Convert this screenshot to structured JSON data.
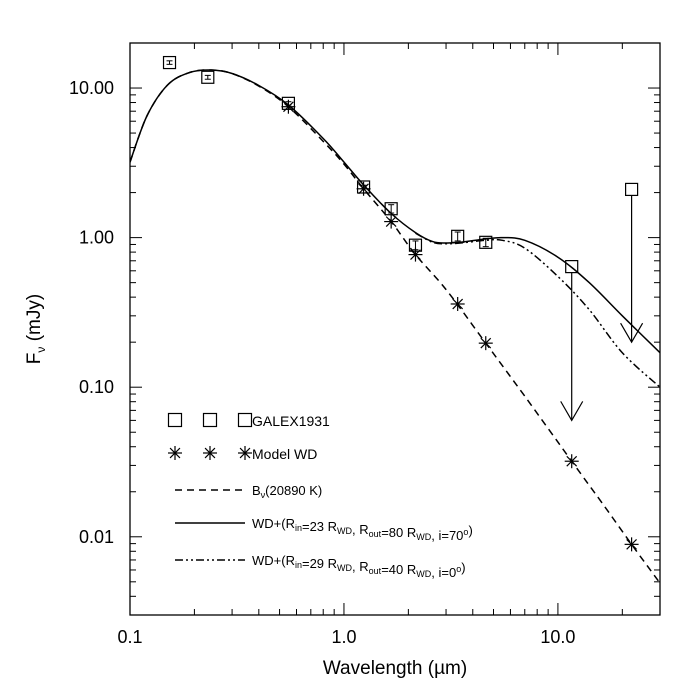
{
  "chart_data": {
    "type": "scatter",
    "xlabel": "Wavelength (µm)",
    "ylabel": {
      "main": "F",
      "sub": "ν",
      "unit": " (mJy)"
    },
    "xscale": "log",
    "yscale": "log",
    "xlim": [
      0.1,
      30
    ],
    "ylim": [
      0.003,
      20
    ],
    "xticks": [
      {
        "value": 0.1,
        "label": "0.1"
      },
      {
        "value": 1.0,
        "label": "1.0"
      },
      {
        "value": 10.0,
        "label": "10.0"
      }
    ],
    "yticks": [
      {
        "value": 0.01,
        "label": "0.01"
      },
      {
        "value": 0.1,
        "label": "0.10"
      },
      {
        "value": 1.0,
        "label": "1.00"
      },
      {
        "value": 10.0,
        "label": "10.00"
      }
    ],
    "grid": false,
    "legend_position": "lower-left",
    "series": [
      {
        "name": "GALEX1931",
        "kind": "points",
        "marker": "square",
        "points": [
          {
            "x": 0.153,
            "y": 14.8,
            "err": 0.4
          },
          {
            "x": 0.231,
            "y": 11.8,
            "err": 0.35
          },
          {
            "x": 0.55,
            "y": 7.9,
            "err": 0.2
          },
          {
            "x": 1.235,
            "y": 2.18,
            "err": 0.06
          },
          {
            "x": 1.662,
            "y": 1.56,
            "err": 0.1
          },
          {
            "x": 2.159,
            "y": 0.89,
            "err": 0.06
          },
          {
            "x": 3.4,
            "y": 1.02,
            "err": 0.07
          },
          {
            "x": 4.6,
            "y": 0.93,
            "err": 0.06
          },
          {
            "x": 11.6,
            "y": 0.64,
            "err": 0
          },
          {
            "x": 22.1,
            "y": 2.1,
            "err": 0
          }
        ],
        "upper_limits": [
          {
            "x": 11.6,
            "from": 0.64,
            "to": 0.06
          },
          {
            "x": 22.1,
            "from": 2.1,
            "to": 0.2
          }
        ]
      },
      {
        "name": "Model WD",
        "kind": "points",
        "marker": "asterisk",
        "points": [
          {
            "x": 0.55,
            "y": 7.5
          },
          {
            "x": 1.235,
            "y": 2.12
          },
          {
            "x": 1.662,
            "y": 1.28
          },
          {
            "x": 2.159,
            "y": 0.77
          },
          {
            "x": 3.4,
            "y": 0.36
          },
          {
            "x": 4.6,
            "y": 0.197
          },
          {
            "x": 11.6,
            "y": 0.032
          },
          {
            "x": 22.1,
            "y": 0.0089
          }
        ]
      },
      {
        "name": {
          "main": "B",
          "sub": "ν",
          "rest": "(20890 K)"
        },
        "kind": "line",
        "style": "dashed",
        "points": [
          {
            "x": 0.1,
            "y": 3.2
          },
          {
            "x": 0.12,
            "y": 6.5
          },
          {
            "x": 0.15,
            "y": 10.5
          },
          {
            "x": 0.19,
            "y": 12.7
          },
          {
            "x": 0.24,
            "y": 13.2
          },
          {
            "x": 0.3,
            "y": 12.5
          },
          {
            "x": 0.4,
            "y": 10.3
          },
          {
            "x": 0.55,
            "y": 7.5
          },
          {
            "x": 0.8,
            "y": 4.4
          },
          {
            "x": 1.0,
            "y": 3.1
          },
          {
            "x": 1.235,
            "y": 2.12
          },
          {
            "x": 1.662,
            "y": 1.28
          },
          {
            "x": 2.159,
            "y": 0.77
          },
          {
            "x": 3.0,
            "y": 0.45
          },
          {
            "x": 4.6,
            "y": 0.197
          },
          {
            "x": 7.0,
            "y": 0.087
          },
          {
            "x": 11.6,
            "y": 0.032
          },
          {
            "x": 16.0,
            "y": 0.017
          },
          {
            "x": 22.1,
            "y": 0.0089
          },
          {
            "x": 30.0,
            "y": 0.0049
          }
        ]
      },
      {
        "name": {
          "parts": [
            {
              "t": "WD+(R"
            },
            {
              "t": "in",
              "sub": true
            },
            {
              "t": "=23 R"
            },
            {
              "t": "WD",
              "sub": true
            },
            {
              "t": ", R"
            },
            {
              "t": "out",
              "sub": true
            },
            {
              "t": "=80 R"
            },
            {
              "t": "WD",
              "sub": true
            },
            {
              "t": ", i=70"
            },
            {
              "t": "o",
              "sup": true
            },
            {
              "t": ")"
            }
          ]
        },
        "kind": "line",
        "style": "solid",
        "points": [
          {
            "x": 0.1,
            "y": 3.2
          },
          {
            "x": 0.12,
            "y": 6.5
          },
          {
            "x": 0.15,
            "y": 10.5
          },
          {
            "x": 0.19,
            "y": 12.7
          },
          {
            "x": 0.24,
            "y": 13.2
          },
          {
            "x": 0.3,
            "y": 12.5
          },
          {
            "x": 0.4,
            "y": 10.4
          },
          {
            "x": 0.55,
            "y": 7.7
          },
          {
            "x": 0.8,
            "y": 4.6
          },
          {
            "x": 1.0,
            "y": 3.2
          },
          {
            "x": 1.235,
            "y": 2.25
          },
          {
            "x": 1.662,
            "y": 1.45
          },
          {
            "x": 2.159,
            "y": 1.08
          },
          {
            "x": 2.6,
            "y": 0.94
          },
          {
            "x": 3.0,
            "y": 0.92
          },
          {
            "x": 3.5,
            "y": 0.93
          },
          {
            "x": 4.6,
            "y": 0.98
          },
          {
            "x": 5.5,
            "y": 1.0
          },
          {
            "x": 7.0,
            "y": 0.96
          },
          {
            "x": 10.0,
            "y": 0.74
          },
          {
            "x": 14.0,
            "y": 0.5
          },
          {
            "x": 20.0,
            "y": 0.3
          },
          {
            "x": 30.0,
            "y": 0.17
          }
        ]
      },
      {
        "name": {
          "parts": [
            {
              "t": "WD+(R"
            },
            {
              "t": "in",
              "sub": true
            },
            {
              "t": "=29 R"
            },
            {
              "t": "WD",
              "sub": true
            },
            {
              "t": ", R"
            },
            {
              "t": "out",
              "sub": true
            },
            {
              "t": "=40 R"
            },
            {
              "t": "WD",
              "sub": true
            },
            {
              "t": ", i=0"
            },
            {
              "t": "o",
              "sup": true
            },
            {
              "t": ")"
            }
          ]
        },
        "kind": "line",
        "style": "dashdot",
        "points": [
          {
            "x": 2.159,
            "y": 1.07
          },
          {
            "x": 2.6,
            "y": 0.93
          },
          {
            "x": 3.0,
            "y": 0.91
          },
          {
            "x": 3.5,
            "y": 0.92
          },
          {
            "x": 4.6,
            "y": 0.96
          },
          {
            "x": 5.5,
            "y": 0.96
          },
          {
            "x": 7.0,
            "y": 0.85
          },
          {
            "x": 10.0,
            "y": 0.55
          },
          {
            "x": 14.0,
            "y": 0.33
          },
          {
            "x": 20.0,
            "y": 0.17
          },
          {
            "x": 30.0,
            "y": 0.1
          }
        ]
      }
    ]
  }
}
